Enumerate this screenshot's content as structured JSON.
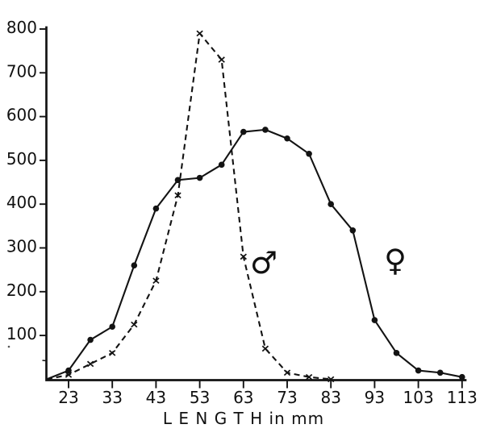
{
  "chart_data": {
    "type": "line",
    "title": "",
    "xlabel": "L E N G T H  in  mm",
    "ylabel": "",
    "x": [
      18,
      23,
      28,
      33,
      38,
      43,
      48,
      53,
      58,
      63,
      68,
      73,
      78,
      83,
      88,
      93,
      98,
      103,
      108,
      113
    ],
    "series": [
      {
        "name": "male",
        "legend_symbol": "♂",
        "line_style": "dashed",
        "marker": "x",
        "values": [
          0,
          10,
          35,
          60,
          125,
          225,
          420,
          790,
          730,
          280,
          70,
          15,
          5,
          0,
          null,
          null,
          null,
          null,
          null,
          null
        ]
      },
      {
        "name": "female",
        "legend_symbol": "♀",
        "line_style": "solid",
        "marker": "dot",
        "values": [
          0,
          20,
          90,
          120,
          260,
          390,
          455,
          460,
          490,
          565,
          570,
          550,
          515,
          400,
          340,
          135,
          60,
          20,
          15,
          5
        ]
      }
    ],
    "x_ticks": [
      23,
      33,
      43,
      53,
      63,
      73,
      83,
      93,
      103,
      113
    ],
    "y_ticks": [
      100,
      200,
      300,
      400,
      500,
      600,
      700,
      800
    ],
    "xlim": [
      18,
      113
    ],
    "ylim": [
      0,
      800
    ],
    "grid": false,
    "legend_position": "inline-annotations",
    "annotations": [
      {
        "name": "male-symbol",
        "symbol": "♂",
        "x_mm": 67.6,
        "value": 268
      },
      {
        "name": "female-symbol",
        "symbol": "♀",
        "x_mm": 97.7,
        "value": 273
      }
    ],
    "ink_color": "#131313",
    "background_color": "#ffffff"
  }
}
